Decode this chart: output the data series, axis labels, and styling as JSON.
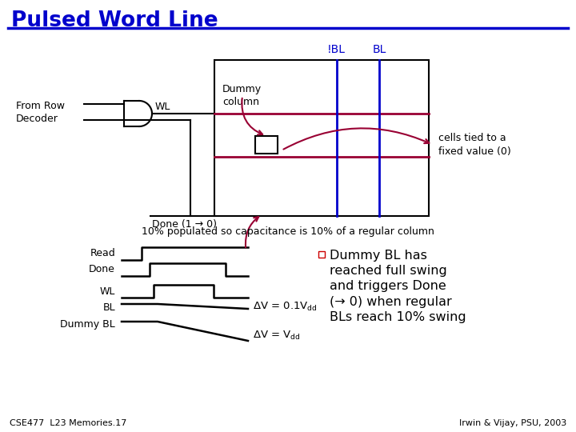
{
  "title": "Pulsed Word Line",
  "title_color": "#0000CC",
  "bg_color": "#FFFFFF",
  "line_color_blue": "#0000CC",
  "line_color_red": "#990033",
  "line_color_black": "#000000",
  "footer_left": "CSE477  L23 Memories.17",
  "footer_right": "Irwin & Vijay, PSU, 2003"
}
